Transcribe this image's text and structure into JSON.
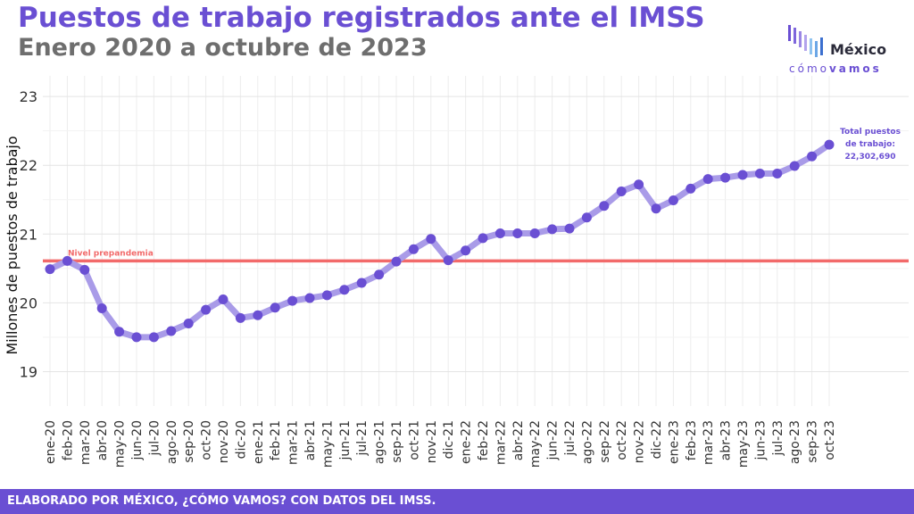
{
  "header": {
    "title": "Puestos de trabajo registrados ante el IMSS",
    "subtitle": "Enero 2020 a octubre de 2023"
  },
  "logo": {
    "main": "México",
    "sub_light": "cómo",
    "sub_bold": "vamos",
    "icon": "bar-logo-icon"
  },
  "footer": {
    "text": "ELABORADO POR MÉXICO, ¿CÓMO VAMOS? CON DATOS DEL IMSS."
  },
  "colors": {
    "accent": "#6a4fd3",
    "line": "#a99be8",
    "reference": "#f26a6a"
  },
  "chart_data": {
    "type": "line",
    "title": "Puestos de trabajo registrados ante el IMSS",
    "subtitle": "Enero 2020 a octubre de 2023",
    "xlabel": "",
    "ylabel": "Millones de puestos de trabajo",
    "ylim": [
      18.5,
      23.3
    ],
    "yticks": [
      19,
      20,
      21,
      22,
      23
    ],
    "grid": true,
    "categories": [
      "ene-20",
      "feb-20",
      "mar-20",
      "abr-20",
      "may-20",
      "jun-20",
      "jul-20",
      "ago-20",
      "sep-20",
      "oct-20",
      "nov-20",
      "dic-20",
      "ene-21",
      "feb-21",
      "mar-21",
      "abr-21",
      "may-21",
      "jun-21",
      "jul-21",
      "ago-21",
      "sep-21",
      "oct-21",
      "nov-21",
      "dic-21",
      "ene-22",
      "feb-22",
      "mar-22",
      "abr-22",
      "may-22",
      "jun-22",
      "jul-22",
      "ago-22",
      "sep-22",
      "oct-22",
      "nov-22",
      "dic-22",
      "ene-23",
      "feb-23",
      "mar-23",
      "abr-23",
      "may-23",
      "jun-23",
      "jul-23",
      "ago-23",
      "sep-23",
      "oct-23"
    ],
    "values": [
      20.49,
      20.61,
      20.48,
      19.92,
      19.58,
      19.5,
      19.5,
      19.59,
      19.7,
      19.9,
      20.05,
      19.78,
      19.82,
      19.93,
      20.03,
      20.07,
      20.11,
      20.19,
      20.29,
      20.41,
      20.6,
      20.78,
      20.93,
      20.62,
      20.76,
      20.94,
      21.01,
      21.01,
      21.01,
      21.07,
      21.08,
      21.24,
      21.41,
      21.62,
      21.72,
      21.37,
      21.49,
      21.66,
      21.8,
      21.82,
      21.86,
      21.88,
      21.88,
      21.99,
      22.13,
      22.3
    ],
    "reference_line": {
      "value": 20.61,
      "label": "Nivel prepandemia"
    },
    "annotation": {
      "lines": [
        "Total puestos",
        "de trabajo:",
        "22,302,690"
      ]
    }
  }
}
